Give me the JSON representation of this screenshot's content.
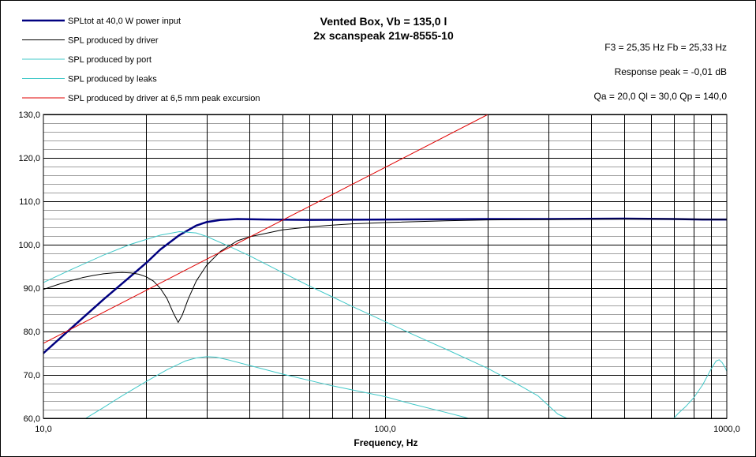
{
  "chart_data": {
    "type": "line",
    "title": "Vented Box, Vb = 135,0 l",
    "subtitle": "2x scanspeak 21w-8555-10",
    "xlabel": "Frequency, Hz",
    "ylabel": "",
    "x_scale": "log",
    "xlim": [
      10,
      1000
    ],
    "ylim": [
      60,
      130
    ],
    "x_tick_labels": [
      {
        "value": 10,
        "label": "10,0"
      },
      {
        "value": 100,
        "label": "100,0"
      },
      {
        "value": 1000,
        "label": "1000,0"
      }
    ],
    "y_tick_labels": [
      {
        "value": 60,
        "label": "60,0"
      },
      {
        "value": 70,
        "label": "70,0"
      },
      {
        "value": 80,
        "label": "80,0"
      },
      {
        "value": 90,
        "label": "90,0"
      },
      {
        "value": 100,
        "label": "100,0"
      },
      {
        "value": 110,
        "label": "110,0"
      },
      {
        "value": 120,
        "label": "120,0"
      },
      {
        "value": 130,
        "label": "130,0"
      }
    ],
    "grid": true,
    "legend_position": "top-left",
    "annotations": [
      "F3 = 25,35 Hz  Fb = 25,33 Hz",
      "Response peak = -0,01 dB",
      "Qa = 20,0  Ql = 30,0  Qp = 140,0"
    ],
    "series": [
      {
        "name": "SPLtot at 40,0 W power input",
        "color": "#000080",
        "width": 2.5,
        "points": [
          [
            10,
            75
          ],
          [
            12,
            80.6
          ],
          [
            15,
            87.4
          ],
          [
            18,
            92.7
          ],
          [
            20,
            95.8
          ],
          [
            22,
            98.9
          ],
          [
            25,
            102.2
          ],
          [
            28,
            104.4
          ],
          [
            30,
            105.2
          ],
          [
            33,
            105.7
          ],
          [
            37,
            105.9
          ],
          [
            45,
            105.8
          ],
          [
            60,
            105.7
          ],
          [
            100,
            105.8
          ],
          [
            200,
            105.9
          ],
          [
            300,
            105.9
          ],
          [
            500,
            106.0
          ],
          [
            700,
            105.9
          ],
          [
            850,
            105.8
          ],
          [
            1000,
            105.8
          ]
        ]
      },
      {
        "name": "SPL produced by driver",
        "color": "#000000",
        "width": 1,
        "points": [
          [
            10,
            89.7
          ],
          [
            11,
            90.8
          ],
          [
            12,
            91.7
          ],
          [
            13,
            92.4
          ],
          [
            14,
            92.9
          ],
          [
            15,
            93.3
          ],
          [
            16,
            93.5
          ],
          [
            17,
            93.6
          ],
          [
            18,
            93.5
          ],
          [
            19,
            93.2
          ],
          [
            20,
            92.6
          ],
          [
            21,
            91.6
          ],
          [
            22,
            89.9
          ],
          [
            23,
            87.6
          ],
          [
            24,
            84.3
          ],
          [
            24.8,
            82.1
          ],
          [
            25.5,
            83.8
          ],
          [
            26.5,
            87.4
          ],
          [
            28,
            91.6
          ],
          [
            30,
            95.2
          ],
          [
            33,
            98.5
          ],
          [
            37,
            100.9
          ],
          [
            40,
            101.8
          ],
          [
            50,
            103.4
          ],
          [
            60,
            104.1
          ],
          [
            70,
            104.5
          ],
          [
            80,
            104.8
          ],
          [
            100,
            105.1
          ],
          [
            150,
            105.5
          ],
          [
            200,
            105.7
          ],
          [
            300,
            105.8
          ],
          [
            500,
            105.9
          ],
          [
            700,
            105.9
          ],
          [
            1000,
            105.8
          ]
        ]
      },
      {
        "name": "SPL produced by port",
        "color": "#40c8c8",
        "width": 1,
        "points": [
          [
            10,
            91.3
          ],
          [
            12,
            94.2
          ],
          [
            15,
            97.6
          ],
          [
            18,
            100.1
          ],
          [
            20,
            101.2
          ],
          [
            22,
            102.2
          ],
          [
            25,
            103.0
          ],
          [
            28,
            102.7
          ],
          [
            30,
            101.9
          ],
          [
            35,
            99.6
          ],
          [
            40,
            97.5
          ],
          [
            50,
            93.6
          ],
          [
            60,
            90.5
          ],
          [
            70,
            88.0
          ],
          [
            80,
            85.8
          ],
          [
            100,
            82.3
          ],
          [
            120,
            79.4
          ],
          [
            150,
            76.0
          ],
          [
            200,
            71.5
          ],
          [
            250,
            67.4
          ],
          [
            280,
            65.2
          ],
          [
            300,
            63.0
          ],
          [
            320,
            61.0
          ],
          [
            340,
            60
          ]
        ]
      },
      {
        "name": "SPL produced by leaks",
        "color": "#40c8c8",
        "width": 1,
        "segments": [
          [
            [
              13.3,
              60
            ],
            [
              15,
              62.5
            ],
            [
              17,
              65.2
            ],
            [
              20,
              68.5
            ],
            [
              23,
              71.2
            ],
            [
              26,
              73.2
            ],
            [
              28,
              73.9
            ],
            [
              30,
              74.2
            ],
            [
              32,
              74.1
            ],
            [
              35,
              73.4
            ],
            [
              40,
              72.2
            ],
            [
              50,
              70.2
            ],
            [
              70,
              67.5
            ],
            [
              100,
              65.0
            ],
            [
              120,
              63.3
            ],
            [
              150,
              61.4
            ],
            [
              170,
              60.3
            ],
            [
              175,
              60
            ]
          ],
          [
            [
              700,
              60
            ],
            [
              720,
              61.1
            ],
            [
              760,
              62.8
            ],
            [
              800,
              64.7
            ],
            [
              850,
              67.7
            ],
            [
              900,
              71.4
            ],
            [
              930,
              73.2
            ],
            [
              950,
              73.5
            ],
            [
              970,
              72.8
            ],
            [
              990,
              71.6
            ],
            [
              1000,
              70.8
            ]
          ]
        ]
      },
      {
        "name": "SPL produced by driver at 6,5 mm peak excursion",
        "color": "#e00000",
        "width": 1,
        "points": [
          [
            10,
            77.3
          ],
          [
            200,
            130
          ]
        ]
      }
    ]
  }
}
